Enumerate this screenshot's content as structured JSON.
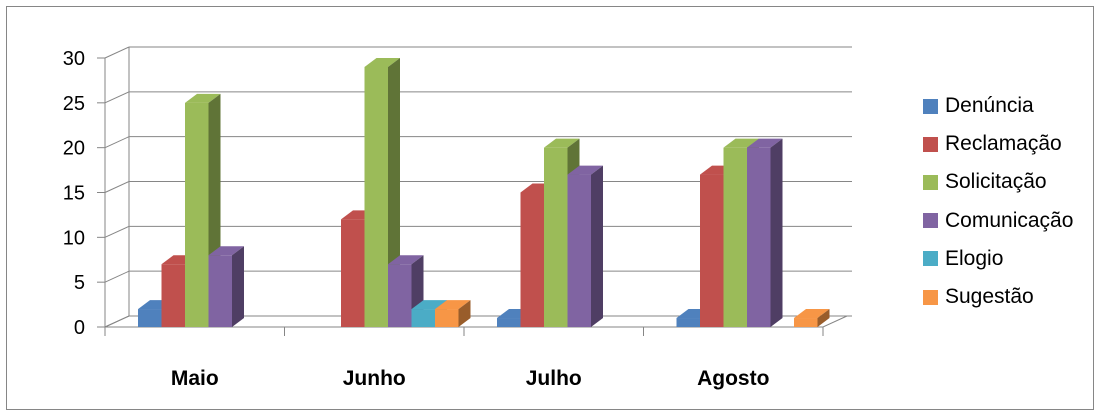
{
  "chart_data": {
    "type": "bar",
    "view": "3d-clustered-column",
    "title": "",
    "xlabel": "",
    "ylabel": "",
    "categories": [
      "Maio",
      "Junho",
      "Julho",
      "Agosto"
    ],
    "ylim": [
      0,
      30
    ],
    "yticks": [
      0,
      5,
      10,
      15,
      20,
      25,
      30
    ],
    "grid": true,
    "legend_position": "right",
    "series": [
      {
        "name": "Denúncia",
        "color": "#4F81BD",
        "values": [
          2,
          0,
          1,
          1
        ]
      },
      {
        "name": "Reclamação",
        "color": "#C0504D",
        "values": [
          7,
          12,
          15,
          17
        ]
      },
      {
        "name": "Solicitação",
        "color": "#9BBB59",
        "values": [
          25,
          29,
          20,
          20
        ]
      },
      {
        "name": "Comunicação",
        "color": "#8064A2",
        "values": [
          8,
          7,
          17,
          20
        ]
      },
      {
        "name": "Elogio",
        "color": "#4BACC6",
        "values": [
          0,
          2,
          0,
          0
        ]
      },
      {
        "name": "Sugestão",
        "color": "#F79646",
        "values": [
          0,
          2,
          0,
          1
        ]
      }
    ]
  }
}
